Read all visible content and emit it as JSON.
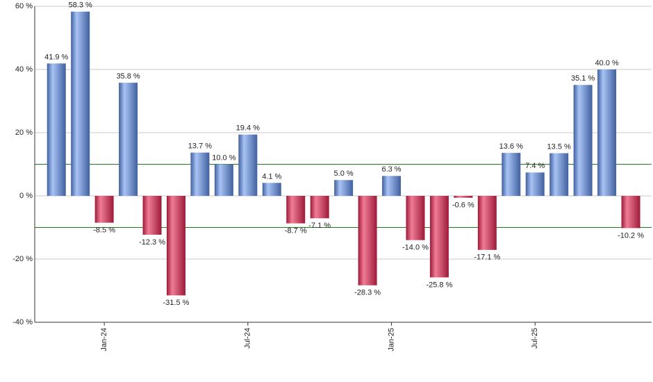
{
  "chart_data": {
    "type": "bar",
    "categories": [
      null,
      null,
      "Jan-24",
      null,
      null,
      null,
      null,
      null,
      "Jul-24",
      null,
      null,
      null,
      null,
      null,
      "Jan-25",
      null,
      null,
      null,
      null,
      null,
      "Jul-25",
      null,
      null,
      null,
      null
    ],
    "values": [
      41.9,
      58.3,
      -8.5,
      35.8,
      -12.3,
      -31.5,
      13.7,
      10.0,
      19.4,
      4.1,
      -8.7,
      -7.1,
      5.0,
      -28.3,
      6.3,
      -14.0,
      -25.8,
      -0.6,
      -17.1,
      13.6,
      7.4,
      13.5,
      35.1,
      40.0,
      -10.2
    ],
    "value_labels": [
      "41.9 %",
      "58.3 %",
      "-8.5 %",
      "35.8 %",
      "-12.3 %",
      "-31.5 %",
      "13.7 %",
      "10.0 %",
      "19.4 %",
      "4.1 %",
      "-8.7 %",
      "-7.1 %",
      "5.0 %",
      "-28.3 %",
      "6.3 %",
      "-14.0 %",
      "-25.8 %",
      "-0.6 %",
      "-17.1 %",
      "13.6 %",
      "7.4 %",
      "13.5 %",
      "35.1 %",
      "40.0 %",
      "-10.2 %"
    ],
    "positive_colors": [
      "#a8c3f4",
      "#40609f"
    ],
    "negative_colors": [
      "#f07c96",
      "#9c1a38"
    ],
    "ylim": [
      -40,
      60
    ],
    "yticks": [
      {
        "value": -40,
        "label": "-40 %"
      },
      {
        "value": -20,
        "label": "-20 %"
      },
      {
        "value": 0,
        "label": "0 %"
      },
      {
        "value": 20,
        "label": "20 %"
      },
      {
        "value": 40,
        "label": "40 %"
      },
      {
        "value": 60,
        "label": "60 %"
      }
    ],
    "reference_lines": [
      10,
      -10
    ],
    "reference_color": "#1a7a1a",
    "grid": true
  }
}
